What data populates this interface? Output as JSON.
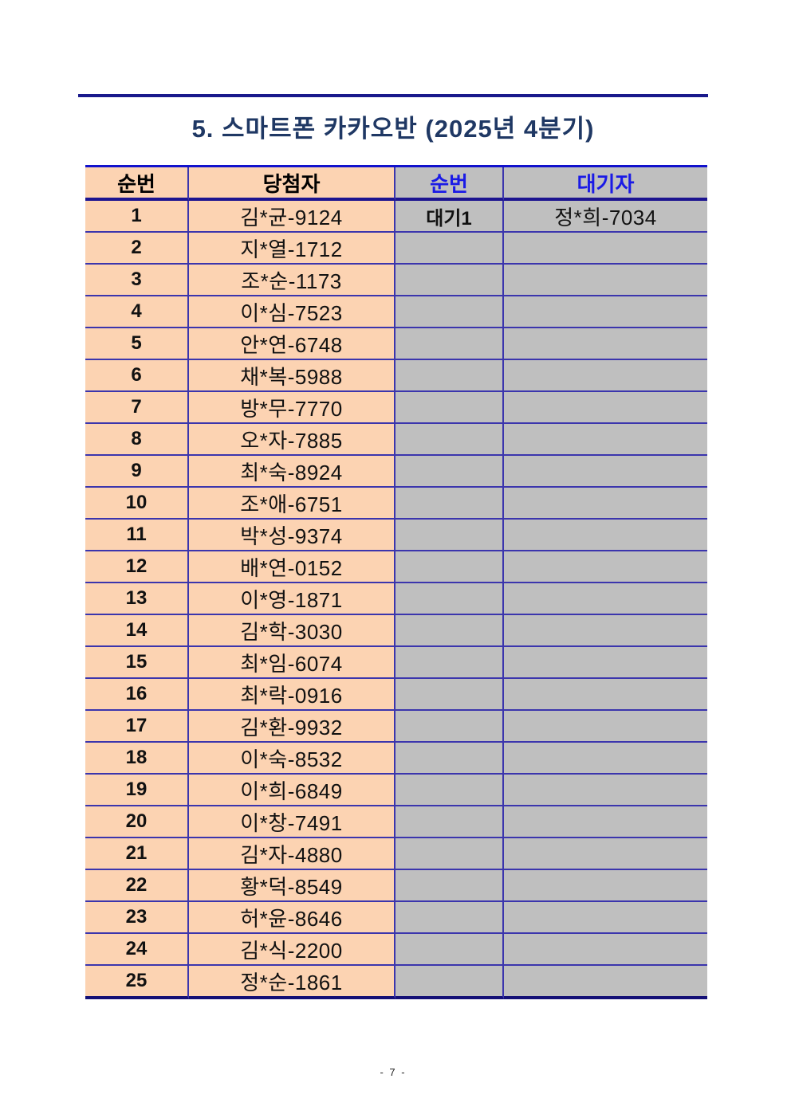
{
  "page": {
    "title": "5. 스마트폰  카카오반  (2025년  4분기)",
    "page_number": "- 7 -"
  },
  "colors": {
    "title_navy": "#1f3864",
    "winner_fill_peach": "#fcd3b2",
    "waitlist_fill_gray": "#bfbfbf",
    "grid_line_blue": "#3b35ad",
    "thick_border_navy": "#1c1490",
    "header_text_blue": "#1a1ae6"
  },
  "table": {
    "left_headers": {
      "no": "순번",
      "winner": "당첨자"
    },
    "right_headers": {
      "no": "순번",
      "waiting": "대기자"
    },
    "winners": [
      {
        "no": "1",
        "name": "김*균-9124"
      },
      {
        "no": "2",
        "name": "지*열-1712"
      },
      {
        "no": "3",
        "name": "조*순-1173"
      },
      {
        "no": "4",
        "name": "이*심-7523"
      },
      {
        "no": "5",
        "name": "안*연-6748"
      },
      {
        "no": "6",
        "name": "채*복-5988"
      },
      {
        "no": "7",
        "name": "방*무-7770"
      },
      {
        "no": "8",
        "name": "오*자-7885"
      },
      {
        "no": "9",
        "name": "최*숙-8924"
      },
      {
        "no": "10",
        "name": "조*애-6751"
      },
      {
        "no": "11",
        "name": "박*성-9374"
      },
      {
        "no": "12",
        "name": "배*연-0152"
      },
      {
        "no": "13",
        "name": "이*영-1871"
      },
      {
        "no": "14",
        "name": "김*학-3030"
      },
      {
        "no": "15",
        "name": "최*임-6074"
      },
      {
        "no": "16",
        "name": "최*락-0916"
      },
      {
        "no": "17",
        "name": "김*환-9932"
      },
      {
        "no": "18",
        "name": "이*숙-8532"
      },
      {
        "no": "19",
        "name": "이*희-6849"
      },
      {
        "no": "20",
        "name": "이*창-7491"
      },
      {
        "no": "21",
        "name": "김*자-4880"
      },
      {
        "no": "22",
        "name": "황*덕-8549"
      },
      {
        "no": "23",
        "name": "허*윤-8646"
      },
      {
        "no": "24",
        "name": "김*식-2200"
      },
      {
        "no": "25",
        "name": "정*순-1861"
      }
    ],
    "waitlist": [
      {
        "no": "대기1",
        "name": "정*희-7034"
      }
    ]
  }
}
